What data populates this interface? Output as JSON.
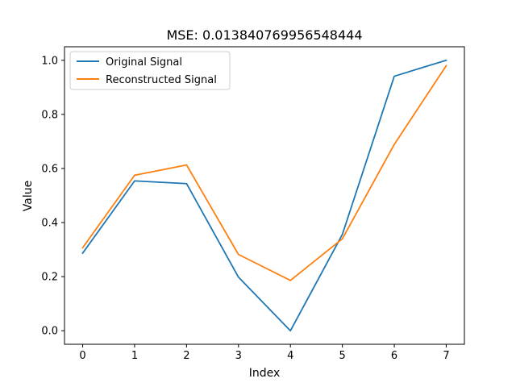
{
  "chart_data": {
    "type": "line",
    "title": "MSE: 0.013840769956548444",
    "xlabel": "Index",
    "ylabel": "Value",
    "x": [
      0,
      1,
      2,
      3,
      4,
      5,
      6,
      7
    ],
    "xlim": [
      -0.35,
      7.35
    ],
    "ylim": [
      -0.05,
      1.05
    ],
    "xticks": [
      "0",
      "1",
      "2",
      "3",
      "4",
      "5",
      "6",
      "7"
    ],
    "yticks": [
      "0.0",
      "0.2",
      "0.4",
      "0.6",
      "0.8",
      "1.0"
    ],
    "grid": false,
    "legend_position": "top-left",
    "series": [
      {
        "name": "Original Signal",
        "color": "#1f77b4",
        "values": [
          0.287,
          0.554,
          0.544,
          0.198,
          0.0,
          0.356,
          0.941,
          1.0
        ]
      },
      {
        "name": "Reconstructed Signal",
        "color": "#ff7f0e",
        "values": [
          0.307,
          0.575,
          0.613,
          0.282,
          0.186,
          0.34,
          0.689,
          0.98
        ]
      }
    ]
  }
}
